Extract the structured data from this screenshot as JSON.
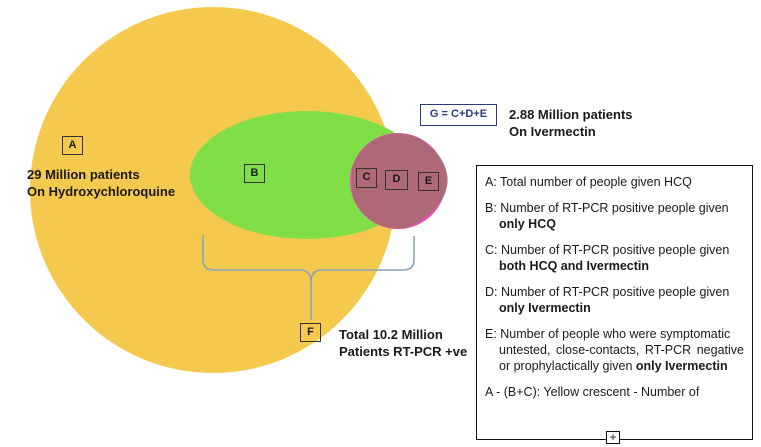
{
  "regions": {
    "a": {
      "letter": "A",
      "line1": "29 Million patients",
      "line2": "On Hydroxychloroquine"
    },
    "b": {
      "letter": "B"
    },
    "c": {
      "letter": "C"
    },
    "d": {
      "letter": "D"
    },
    "e": {
      "letter": "E"
    },
    "f": {
      "letter": "F",
      "line1": "Total 10.2 Million",
      "line2": "Patients RT-PCR +ve"
    },
    "g": {
      "formula": "G = C+D+E",
      "line1": "2.88 Million patients",
      "line2": "On Ivermectin"
    }
  },
  "colors": {
    "yellow": "#f5c94e",
    "green": "#7ddc45",
    "pink": "#e94fb5",
    "overlap": "#a86a6e",
    "bracket": "#8aa4b8"
  },
  "legend": {
    "a": {
      "text": "A: Total number of people given HCQ"
    },
    "b": {
      "text": "B: Number of RT-PCR positive people given",
      "bold": "only HCQ"
    },
    "c": {
      "text": "C: Number of RT-PCR positive people given",
      "bold": "both HCQ and Ivermectin"
    },
    "d": {
      "text": "D: Number of RT-PCR positive people given",
      "bold": "only Ivermectin"
    },
    "e": {
      "text": "E: Number of people who were symptomatic",
      "text2": "untested, close-contacts, RT-PCR negative or prophylactically given",
      "bold": "only Ivermectin"
    },
    "f": {
      "text": "A - (B+C): Yellow crescent - Number of"
    }
  }
}
